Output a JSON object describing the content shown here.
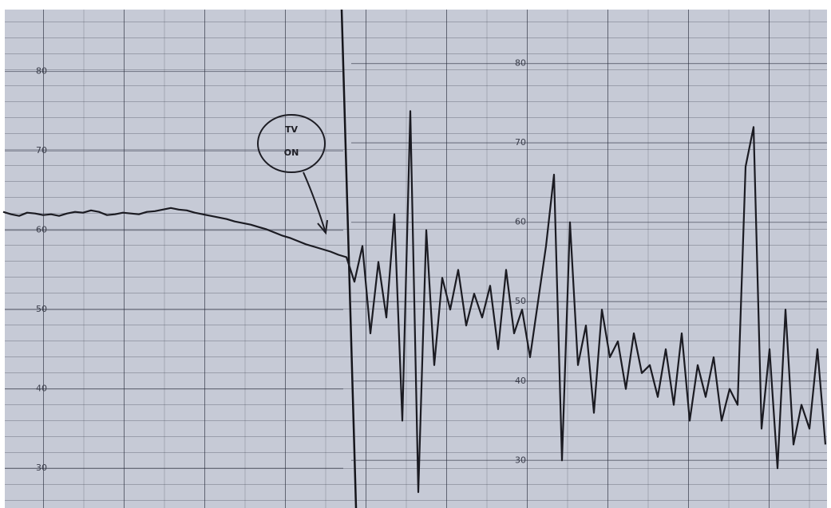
{
  "chart_data": {
    "type": "line",
    "annotation_lines": [
      "TV",
      "ON"
    ],
    "values": [
      62.3,
      62.0,
      61.8,
      62.2,
      62.1,
      61.9,
      62.0,
      61.8,
      62.1,
      62.3,
      62.2,
      62.5,
      62.3,
      61.9,
      62.0,
      62.2,
      62.1,
      62.0,
      62.3,
      62.4,
      62.6,
      62.8,
      62.6,
      62.5,
      62.2,
      62.0,
      61.8,
      61.6,
      61.4,
      61.1,
      60.9,
      60.7,
      60.4,
      60.1,
      59.7,
      59.3,
      59.0,
      58.6,
      58.2,
      57.9,
      57.6,
      57.3,
      56.9,
      56.6,
      53.5,
      58,
      47,
      56,
      49,
      62,
      36,
      75,
      27,
      60,
      43,
      54,
      50,
      55,
      48,
      52,
      49,
      53,
      45,
      55,
      47,
      50,
      44,
      51,
      58,
      67,
      31,
      61,
      43,
      48,
      37,
      50,
      44,
      46,
      40,
      47,
      42,
      43,
      39,
      45,
      38,
      47,
      36,
      43,
      39,
      44,
      36,
      40,
      38,
      68,
      73,
      35,
      45,
      30,
      50,
      33,
      38,
      35,
      45,
      33
    ],
    "color": "#1b1b22",
    "ylim": [
      25,
      89
    ],
    "yticks": [
      30,
      40,
      50,
      60,
      70,
      80
    ],
    "y2lim": [
      24,
      88
    ],
    "y2ticks": [
      30,
      40,
      50,
      60,
      70,
      80
    ],
    "grid": true
  }
}
